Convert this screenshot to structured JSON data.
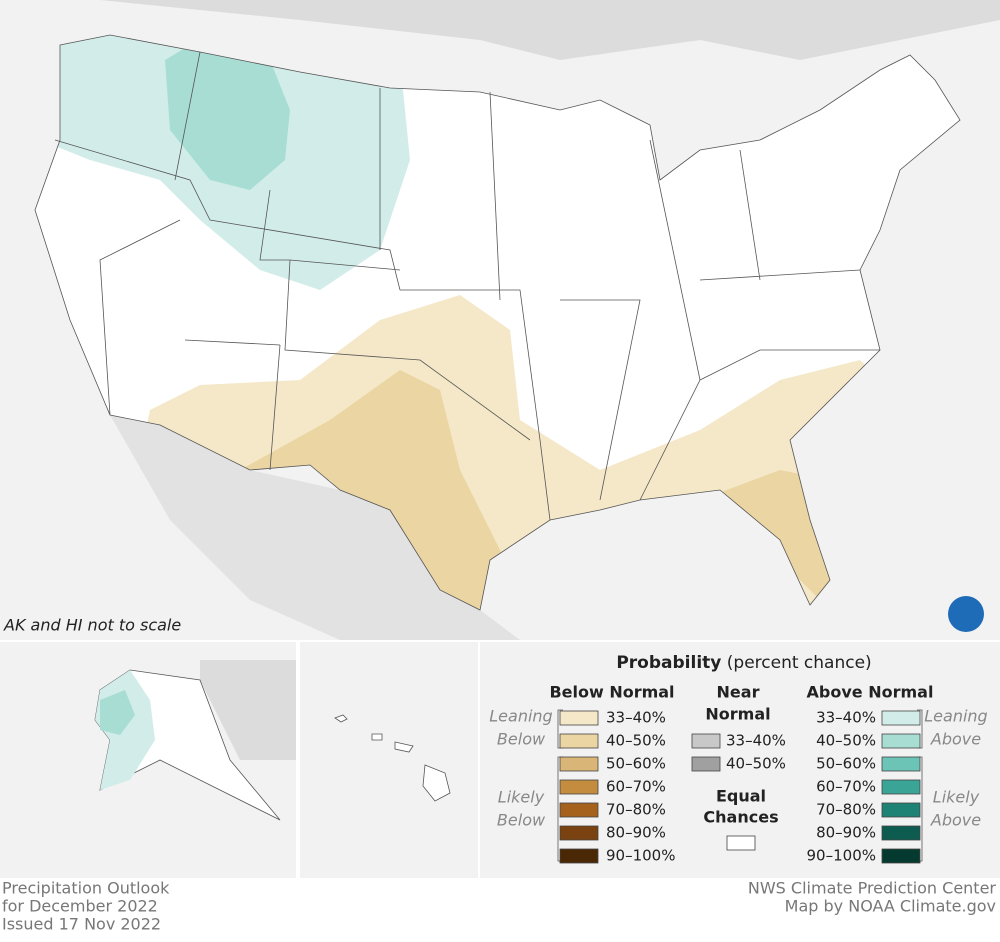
{
  "map": {
    "note": "AK and HI not to scale"
  },
  "legend": {
    "title": "Probability",
    "subtitle": "(percent chance)",
    "below": {
      "heading": "Below Normal",
      "leaning": [
        "Leaning",
        "Below"
      ],
      "likely": [
        "Likely",
        "Below"
      ],
      "items": [
        {
          "label": "33–40%",
          "color": "#f5e8c8"
        },
        {
          "label": "40–50%",
          "color": "#ead5a3"
        },
        {
          "label": "50–60%",
          "color": "#d9b677"
        },
        {
          "label": "60–70%",
          "color": "#c48c3e"
        },
        {
          "label": "70–80%",
          "color": "#a4621c"
        },
        {
          "label": "80–90%",
          "color": "#7a4210"
        },
        {
          "label": "90–100%",
          "color": "#4a2806"
        }
      ]
    },
    "near": {
      "heading": [
        "Near",
        "Normal"
      ],
      "items": [
        {
          "label": "33–40%",
          "color": "#c8c8c8"
        },
        {
          "label": "40–50%",
          "color": "#a0a0a0"
        }
      ]
    },
    "equal": {
      "heading": [
        "Equal",
        "Chances"
      ],
      "color": "#ffffff"
    },
    "above": {
      "heading": "Above Normal",
      "leaning": [
        "Leaning",
        "Above"
      ],
      "likely": [
        "Likely",
        "Above"
      ],
      "items": [
        {
          "label": "33–40%",
          "color": "#d2ede9"
        },
        {
          "label": "40–50%",
          "color": "#a8ddd4"
        },
        {
          "label": "50–60%",
          "color": "#6cc4b6"
        },
        {
          "label": "60–70%",
          "color": "#3aa596"
        },
        {
          "label": "70–80%",
          "color": "#1e8274"
        },
        {
          "label": "80–90%",
          "color": "#0e5c50"
        },
        {
          "label": "90–100%",
          "color": "#053a30"
        }
      ]
    }
  },
  "footer": {
    "left": [
      "Precipitation Outlook",
      "for December 2022",
      "Issued 17 Nov 2022"
    ],
    "right": [
      "NWS Climate Prediction Center",
      "Map by NOAA Climate.gov"
    ]
  }
}
